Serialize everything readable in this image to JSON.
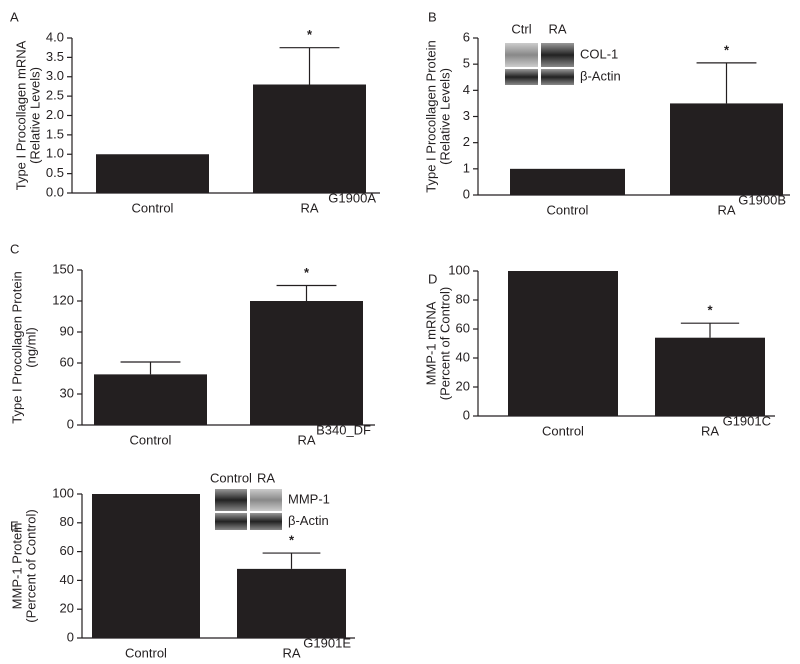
{
  "chart_data": [
    {
      "type": "bar",
      "panel_label": "A",
      "ylabel": [
        "Type I Procollagen mRNA",
        "(Relative Levels)"
      ],
      "categories": [
        "Control",
        "RA"
      ],
      "values": [
        1,
        2.8
      ],
      "errors": [
        null,
        0.95
      ],
      "color": "#231f20",
      "ylim": [
        0,
        4
      ],
      "yticks": [
        {
          "value": 0,
          "label": "0.0"
        },
        0.5,
        {
          "value": 1,
          "label": "1.0"
        },
        1.5,
        {
          "value": 2,
          "label": "2.0"
        },
        2.5,
        {
          "value": 3,
          "label": "3.0"
        },
        3.5,
        {
          "value": 4,
          "label": "4.0"
        }
      ],
      "annotation": "*",
      "code": "G1900A"
    },
    {
      "type": "bar",
      "panel_label": "B",
      "ylabel": [
        "Type I Procollagen Protein",
        "(Relative Levels)"
      ],
      "categories": [
        "Control",
        "RA"
      ],
      "values": [
        1,
        3.5
      ],
      "errors": [
        null,
        1.55
      ],
      "color": "#231f20",
      "ylim": [
        0,
        6
      ],
      "yticks": [
        0,
        1,
        2,
        3,
        4,
        5,
        6
      ],
      "annotation": "*",
      "code": "G1900B",
      "inset": {
        "columns": [
          "Ctrl",
          "RA"
        ],
        "rows": [
          "COL-1",
          "β-Actin"
        ]
      }
    },
    {
      "type": "bar",
      "panel_label": "C",
      "ylabel": [
        "Type I Procollagen Protein",
        "(ng/ml)"
      ],
      "categories": [
        "Control",
        "RA"
      ],
      "values": [
        49,
        120
      ],
      "errors": [
        12,
        15
      ],
      "color": "#231f20",
      "ylim": [
        0,
        150
      ],
      "yticks": [
        0,
        30,
        60,
        90,
        120,
        150
      ],
      "annotation": "*",
      "code": "B340_DF"
    },
    {
      "type": "bar",
      "panel_label": "D",
      "ylabel": [
        "MMP-1 mRNA",
        "(Percent of Control)"
      ],
      "categories": [
        "Control",
        "RA"
      ],
      "values": [
        100,
        54
      ],
      "errors": [
        null,
        10
      ],
      "color": "#231f20",
      "ylim": [
        0,
        100
      ],
      "yticks": [
        0,
        20,
        40,
        60,
        80,
        100
      ],
      "annotation": "*",
      "code": "G1901C"
    },
    {
      "type": "bar",
      "panel_label": "E",
      "ylabel": [
        "MMP-1 Protein",
        "(Percent of Control)"
      ],
      "categories": [
        "Control",
        "RA"
      ],
      "values": [
        100,
        48
      ],
      "errors": [
        null,
        11
      ],
      "color": "#231f20",
      "ylim": [
        0,
        100
      ],
      "yticks": [
        0,
        20,
        40,
        60,
        80,
        100
      ],
      "annotation": "*",
      "code": "G1901E",
      "inset": {
        "columns": [
          "Control",
          "RA"
        ],
        "rows": [
          "MMP-1",
          "β-Actin"
        ]
      }
    }
  ]
}
